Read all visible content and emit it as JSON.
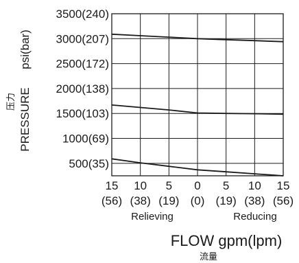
{
  "chart_data": {
    "type": "line",
    "x_tick_labels": [
      {
        "x": -15,
        "flow": "15",
        "lpm": "(56)"
      },
      {
        "x": -10,
        "flow": "10",
        "lpm": "(38)"
      },
      {
        "x": -5,
        "flow": "5",
        "lpm": "(19)"
      },
      {
        "x": 0,
        "flow": "0",
        "lpm": "(0)"
      },
      {
        "x": 5,
        "flow": "5",
        "lpm": "(19)"
      },
      {
        "x": 10,
        "flow": "10",
        "lpm": "(38)"
      },
      {
        "x": 15,
        "flow": "15",
        "lpm": "(56)"
      }
    ],
    "y_ticks": [
      {
        "value": 500,
        "label": "500(35)"
      },
      {
        "value": 1000,
        "label": "1000(69)"
      },
      {
        "value": 1500,
        "label": "1500(103)"
      },
      {
        "value": 2000,
        "label": "2000(138)"
      },
      {
        "value": 2500,
        "label": "2500(172)"
      },
      {
        "value": 3000,
        "label": "3000(207)"
      },
      {
        "value": 3500,
        "label": "3500(240)"
      }
    ],
    "xlim": [
      -15,
      15
    ],
    "ylim": [
      250,
      3500
    ],
    "grid": true,
    "region_labels": {
      "left": "Relieving",
      "right": "Reducing"
    },
    "xlabel": "FLOW gpm(lpm)",
    "xlabel_cn": "流量",
    "ylabel": "PRESSURE",
    "ylabel_unit": "psi(bar)",
    "ylabel_cn": "压力",
    "series": [
      {
        "x": [
          -15,
          -10,
          -5,
          0,
          5,
          10,
          15
        ],
        "y": [
          3090,
          3060,
          3030,
          3000,
          2980,
          2960,
          2940
        ]
      },
      {
        "x": [
          -15,
          -10,
          -5,
          0,
          5,
          10,
          15
        ],
        "y": [
          1670,
          1620,
          1570,
          1510,
          1500,
          1495,
          1485
        ]
      },
      {
        "x": [
          -15,
          -10,
          -5,
          0,
          5,
          10,
          15
        ],
        "y": [
          590,
          510,
          440,
          370,
          330,
          290,
          250
        ]
      }
    ],
    "colors": {
      "line": "#1a1a1a",
      "grid": "#1a1a1a"
    }
  }
}
